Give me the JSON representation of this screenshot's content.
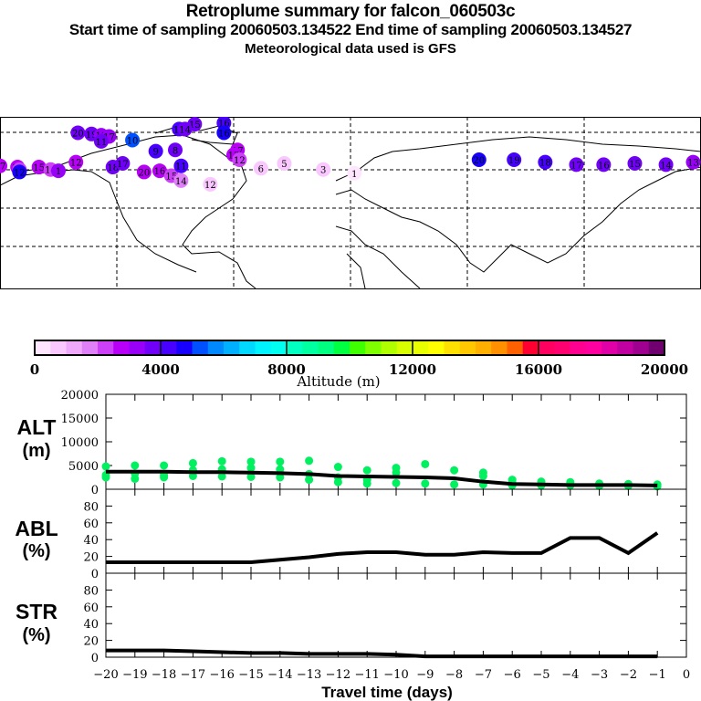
{
  "header": {
    "title": "Retroplume summary for falcon_060503c",
    "sampling": "Start time of sampling 20060503.134522     End time of sampling 20060503.134527",
    "met": "Meteorological data used is GFS"
  },
  "colorbar": {
    "label": "Altitude (m)",
    "ticks": [
      "0",
      "4000",
      "8000",
      "12000",
      "16000",
      "20000"
    ],
    "range": [
      0,
      20000
    ],
    "colors": [
      "#ffe6ff",
      "#f9c8ff",
      "#f0a8fa",
      "#e080f8",
      "#cc40f8",
      "#b800f8",
      "#9800f8",
      "#7000f8",
      "#4800ff",
      "#1800ff",
      "#0050ff",
      "#0088ff",
      "#00b0ff",
      "#00d8ff",
      "#00f4ff",
      "#00fff0",
      "#00ffc0",
      "#00ffa0",
      "#00ff80",
      "#00ff40",
      "#40ff00",
      "#80ff00",
      "#b0ff00",
      "#d8ff00",
      "#e8ff00",
      "#ffff00",
      "#ffe000",
      "#ffc800",
      "#ffb000",
      "#ff9000",
      "#ff6000",
      "#ff0030",
      "#ff0060",
      "#ff0070",
      "#ff0090",
      "#ff00a0",
      "#e000a8",
      "#c000a0",
      "#a00090",
      "#700070"
    ]
  },
  "map": {
    "plume_points": [
      {
        "label": "20",
        "lon": -140,
        "lat": 67,
        "alt": 3500
      },
      {
        "label": "19",
        "lon": -133,
        "lat": 66,
        "alt": 3500
      },
      {
        "label": "18",
        "lon": -128,
        "lat": 65,
        "alt": 3000
      },
      {
        "label": "17",
        "lon": -124,
        "lat": 64,
        "alt": 3200
      },
      {
        "label": "11",
        "lon": -128,
        "lat": 60,
        "alt": 3500
      },
      {
        "label": "10",
        "lon": -112,
        "lat": 61,
        "alt": 5200
      },
      {
        "label": "16",
        "lon": -88,
        "lat": 70,
        "alt": 4000
      },
      {
        "label": "15",
        "lon": -80,
        "lat": 74,
        "alt": 3800
      },
      {
        "label": "14",
        "lon": -85,
        "lat": 70,
        "alt": 3500
      },
      {
        "label": "16",
        "lon": -65,
        "lat": 75,
        "alt": 4200
      },
      {
        "label": "16",
        "lon": -65,
        "lat": 67,
        "alt": 4500
      },
      {
        "label": "9",
        "lon": -100,
        "lat": 52,
        "alt": 4000
      },
      {
        "label": "8",
        "lon": -90,
        "lat": 53,
        "alt": 3800
      },
      {
        "label": "17",
        "lon": -58,
        "lat": 53,
        "alt": 2500
      },
      {
        "label": "13",
        "lon": -60,
        "lat": 49,
        "alt": 2800
      },
      {
        "label": "12",
        "lon": -57,
        "lat": 45,
        "alt": 2200
      },
      {
        "label": "17",
        "lon": -180,
        "lat": 40,
        "alt": 2600
      },
      {
        "label": "16",
        "lon": -171,
        "lat": 39,
        "alt": 2600
      },
      {
        "label": "15",
        "lon": -160,
        "lat": 39,
        "alt": 2500
      },
      {
        "label": "14",
        "lon": -154,
        "lat": 37,
        "alt": 2200
      },
      {
        "label": "1",
        "lon": -150,
        "lat": 36,
        "alt": 3200
      },
      {
        "label": "12",
        "lon": -141,
        "lat": 43,
        "alt": 2800
      },
      {
        "label": "18",
        "lon": -122,
        "lat": 39,
        "alt": 3500
      },
      {
        "label": "17",
        "lon": -117,
        "lat": 42,
        "alt": 3500
      },
      {
        "label": "20",
        "lon": -106,
        "lat": 35,
        "alt": 2800
      },
      {
        "label": "16",
        "lon": -98,
        "lat": 36,
        "alt": 2600
      },
      {
        "label": "15",
        "lon": -92,
        "lat": 32,
        "alt": 2200
      },
      {
        "label": "14",
        "lon": -87,
        "lat": 28,
        "alt": 1600
      },
      {
        "label": "11",
        "lon": -87,
        "lat": 40,
        "alt": 4200
      },
      {
        "label": "6",
        "lon": -46,
        "lat": 38,
        "alt": 900
      },
      {
        "label": "5",
        "lon": -34,
        "lat": 42,
        "alt": 700
      },
      {
        "label": "3",
        "lon": -14,
        "lat": 37,
        "alt": 600
      },
      {
        "label": "1",
        "lon": 2,
        "lat": 34,
        "alt": 400
      },
      {
        "label": "12",
        "lon": -72,
        "lat": 25,
        "alt": 800
      },
      {
        "label": "20",
        "lon": 66,
        "lat": 45,
        "alt": 4600
      },
      {
        "label": "19",
        "lon": 84,
        "lat": 45,
        "alt": 4200
      },
      {
        "label": "18",
        "lon": 100,
        "lat": 43,
        "alt": 4000
      },
      {
        "label": "17",
        "lon": 116,
        "lat": 41,
        "alt": 3800
      },
      {
        "label": "16",
        "lon": 130,
        "lat": 41,
        "alt": 3700
      },
      {
        "label": "15",
        "lon": 146,
        "lat": 42,
        "alt": 3600
      },
      {
        "label": "14",
        "lon": 162,
        "lat": 41,
        "alt": 3500
      },
      {
        "label": "13",
        "lon": 176,
        "lat": 43,
        "alt": 3400
      },
      {
        "label": "20",
        "lon": -170,
        "lat": 37,
        "alt": 2000
      },
      {
        "label": "12",
        "lon": -170,
        "lat": 35,
        "alt": 4600
      }
    ]
  },
  "chart_data": [
    {
      "type": "scatter",
      "title": "",
      "ylabel": "ALT (m)",
      "xlabel": "",
      "ylim": [
        0,
        20000
      ],
      "yticks": [
        "0",
        "5000",
        "10000",
        "15000",
        "20000"
      ],
      "median_line": {
        "x": [
          -20,
          -19,
          -18,
          -17,
          -16,
          -15,
          -14,
          -13,
          -12,
          -11,
          -10,
          -9,
          -8,
          -7,
          -6,
          -5,
          -4,
          -3,
          -2,
          -1
        ],
        "y": [
          3700,
          3700,
          3700,
          3600,
          3600,
          3500,
          3400,
          3200,
          2800,
          2700,
          2600,
          2500,
          2300,
          1600,
          1100,
          1000,
          900,
          900,
          900,
          800
        ]
      },
      "points": [
        {
          "x": -20,
          "y": [
            4800,
            3000,
            2500
          ]
        },
        {
          "x": -19,
          "y": [
            5000,
            3300,
            2200
          ]
        },
        {
          "x": -18,
          "y": [
            5000,
            3000,
            2500
          ]
        },
        {
          "x": -17,
          "y": [
            5500,
            4000,
            2800
          ]
        },
        {
          "x": -16,
          "y": [
            5900,
            4200,
            2700
          ]
        },
        {
          "x": -15,
          "y": [
            5800,
            4500,
            2600
          ]
        },
        {
          "x": -14,
          "y": [
            5800,
            4200,
            2500
          ]
        },
        {
          "x": -13,
          "y": [
            6000,
            3200,
            2000
          ]
        },
        {
          "x": -12,
          "y": [
            4700,
            2500,
            1500
          ]
        },
        {
          "x": -11,
          "y": [
            4000,
            2000,
            1200
          ]
        },
        {
          "x": -10,
          "y": [
            4500,
            3500,
            1300
          ]
        },
        {
          "x": -9,
          "y": [
            5300,
            1200
          ]
        },
        {
          "x": -8,
          "y": [
            4000,
            1000
          ]
        },
        {
          "x": -7,
          "y": [
            3500,
            2800,
            1000
          ]
        },
        {
          "x": -6,
          "y": [
            2000,
            1300,
            800
          ]
        },
        {
          "x": -5,
          "y": [
            1600,
            800
          ]
        },
        {
          "x": -4,
          "y": [
            1500,
            800
          ]
        },
        {
          "x": -3,
          "y": [
            1200,
            700
          ]
        },
        {
          "x": -2,
          "y": [
            1100,
            700
          ]
        },
        {
          "x": -1,
          "y": [
            1000,
            600
          ]
        }
      ]
    },
    {
      "type": "line",
      "ylabel": "ABL (%)",
      "ylim": [
        0,
        100
      ],
      "yticks": [
        "0",
        "20",
        "40",
        "60",
        "80"
      ],
      "x": [
        -20,
        -19,
        -18,
        -17,
        -16,
        -15,
        -14,
        -13,
        -12,
        -11,
        -10,
        -9,
        -8,
        -7,
        -6,
        -5,
        -4,
        -3,
        -2,
        -1
      ],
      "y": [
        13,
        13,
        13,
        13,
        13,
        13,
        16,
        19,
        23,
        25,
        25,
        22,
        22,
        25,
        24,
        24,
        42,
        42,
        24,
        48
      ]
    },
    {
      "type": "line",
      "ylabel": "STR (%)",
      "xlabel": "Travel time (days)",
      "ylim": [
        0,
        100
      ],
      "xlim": [
        -20,
        0
      ],
      "yticks": [
        "0",
        "20",
        "40",
        "60",
        "80"
      ],
      "xticks": [
        "-20",
        "-19",
        "-18",
        "-17",
        "-16",
        "-15",
        "-14",
        "-13",
        "-12",
        "-11",
        "-10",
        "-9",
        "-8",
        "-7",
        "-6",
        "-5",
        "-4",
        "-3",
        "-2",
        "-1",
        "0"
      ],
      "x": [
        -20,
        -19,
        -18,
        -17,
        -16,
        -15,
        -14,
        -13,
        -12,
        -11,
        -10,
        -9,
        -8,
        -7,
        -6,
        -5,
        -4,
        -3,
        -2,
        -1
      ],
      "y": [
        8,
        8,
        8,
        7,
        6,
        5,
        5,
        4,
        4,
        4,
        3,
        1,
        1,
        1,
        1,
        1,
        1,
        1,
        1,
        1
      ]
    }
  ]
}
